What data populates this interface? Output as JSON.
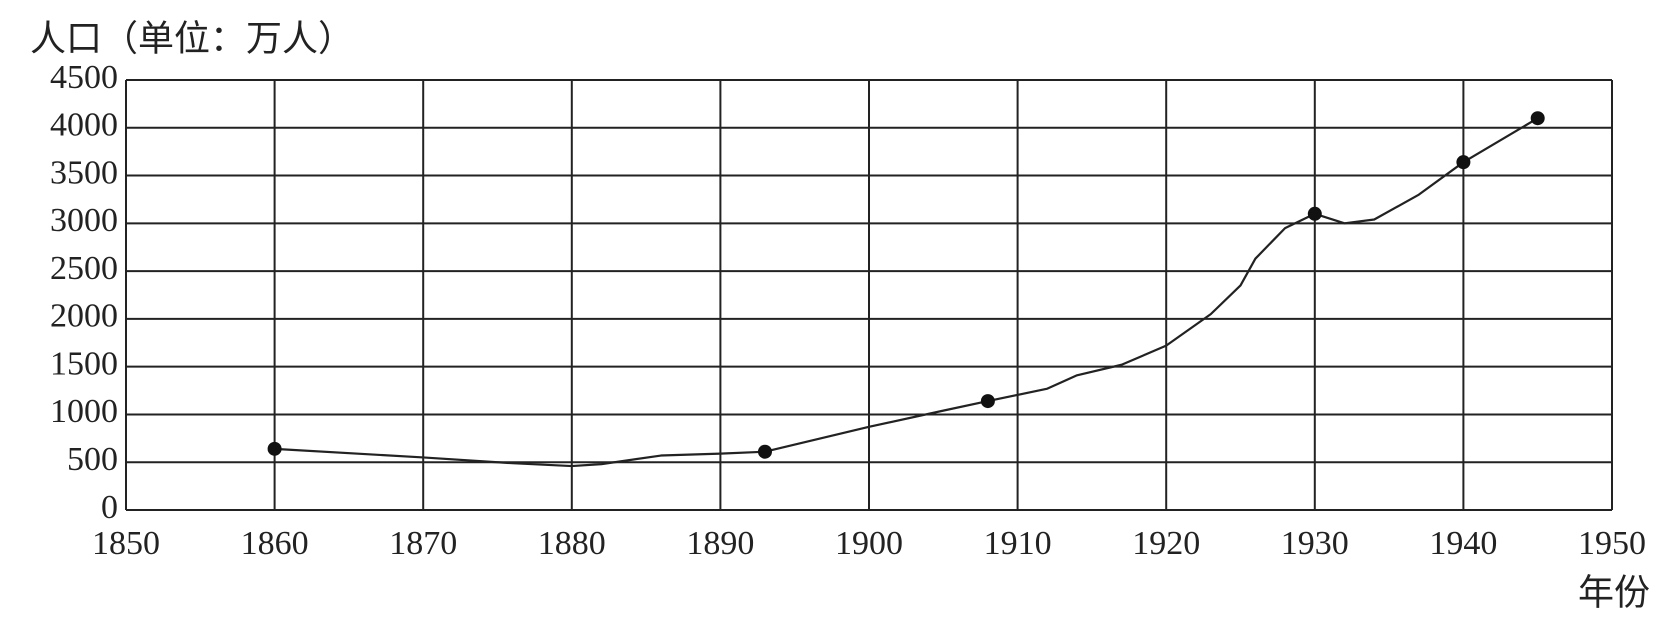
{
  "chart_data": {
    "type": "line",
    "title": "人口（单位：万人）",
    "x_label": "年份",
    "xlim": [
      1850,
      1950
    ],
    "xticks": [
      1850,
      1860,
      1870,
      1880,
      1890,
      1900,
      1910,
      1920,
      1930,
      1940,
      1950
    ],
    "ylim": [
      0,
      4500
    ],
    "yticks": [
      0,
      500,
      1000,
      1500,
      2000,
      2500,
      3000,
      3500,
      4000,
      4500
    ],
    "grid": true,
    "series": [
      {
        "color": "#222222",
        "marker": false,
        "x": [
          1860,
          1870,
          1876,
          1880,
          1882,
          1886,
          1890,
          1893,
          1900,
          1905,
          1908,
          1912,
          1914,
          1917,
          1920,
          1923,
          1925,
          1926,
          1928,
          1930,
          1932,
          1934,
          1937,
          1940,
          1945
        ],
        "values": [
          640,
          550,
          490,
          460,
          480,
          570,
          590,
          610,
          870,
          1040,
          1140,
          1270,
          1410,
          1520,
          1720,
          2050,
          2350,
          2630,
          2950,
          3100,
          3000,
          3040,
          3300,
          3640,
          4100
        ]
      },
      {
        "color": "#111111",
        "marker": true,
        "line": false,
        "x": [
          1860,
          1893,
          1908,
          1930,
          1940,
          1945
        ],
        "values": [
          640,
          610,
          1140,
          3100,
          3640,
          4100
        ]
      }
    ]
  }
}
